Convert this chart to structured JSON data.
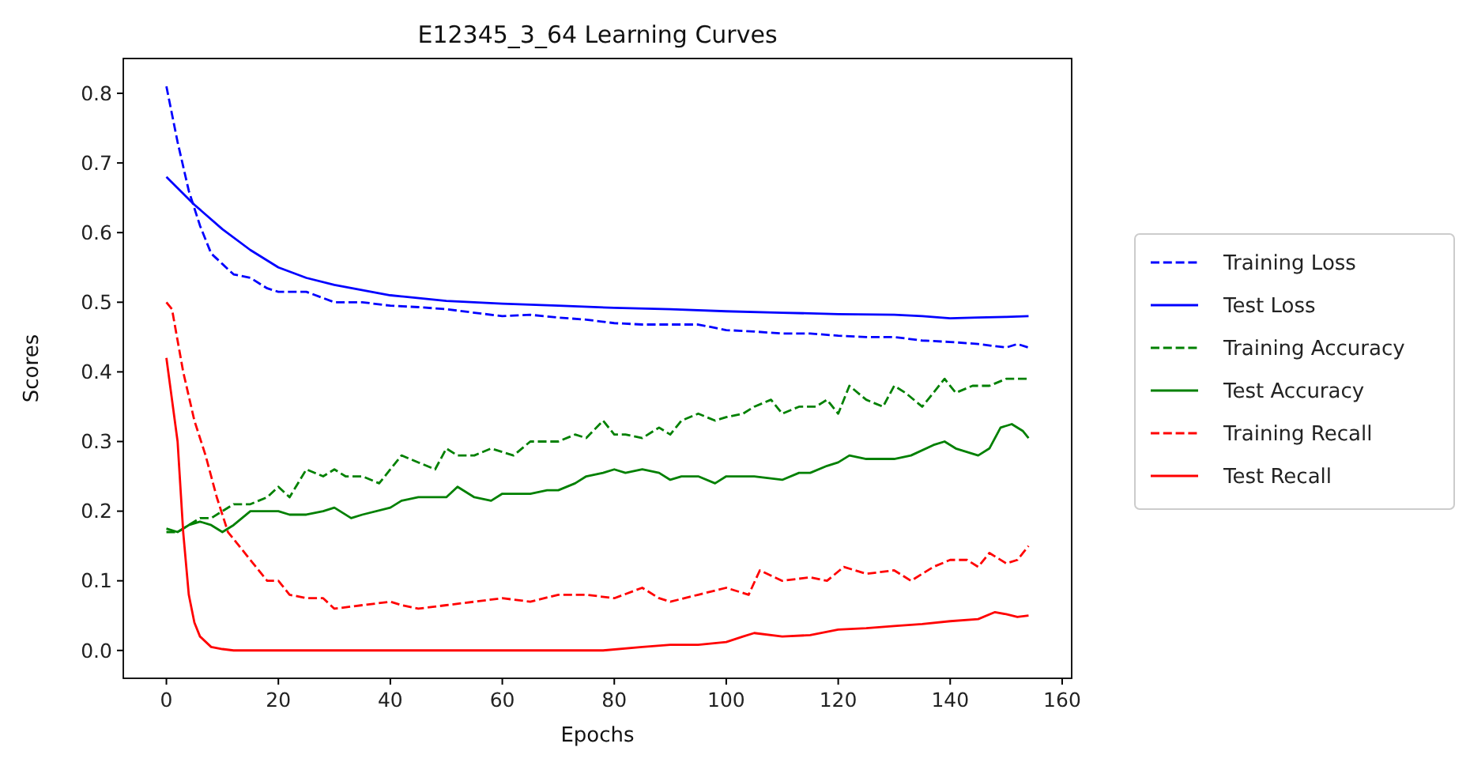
{
  "chart_data": {
    "type": "line",
    "title": "E12345_3_64 Learning Curves",
    "xlabel": "Epochs",
    "ylabel": "Scores",
    "xlim": [
      -7.7,
      161.7
    ],
    "ylim": [
      -0.04,
      0.85
    ],
    "xticks": [
      0,
      20,
      40,
      60,
      80,
      100,
      120,
      140,
      160
    ],
    "yticks": [
      {
        "value": 0,
        "label": "0.0"
      },
      {
        "value": 0.1,
        "label": "0.1"
      },
      {
        "value": 0.2,
        "label": "0.2"
      },
      {
        "value": 0.3,
        "label": "0.3"
      },
      {
        "value": 0.4,
        "label": "0.4"
      },
      {
        "value": 0.5,
        "label": "0.5"
      },
      {
        "value": 0.6,
        "label": "0.6"
      },
      {
        "value": 0.7,
        "label": "0.7"
      },
      {
        "value": 0.8,
        "label": "0.8"
      }
    ],
    "legend": "right",
    "grid": false,
    "series": [
      {
        "name": "Training Loss",
        "color": "#0000ff",
        "line_style": "dashed",
        "x": [
          0,
          2,
          4,
          6,
          8,
          10,
          12,
          15,
          18,
          20,
          25,
          30,
          35,
          40,
          45,
          50,
          55,
          60,
          65,
          70,
          75,
          80,
          85,
          90,
          95,
          100,
          105,
          110,
          115,
          120,
          125,
          130,
          135,
          140,
          145,
          150,
          152,
          154
        ],
        "values": [
          0.81,
          0.73,
          0.66,
          0.61,
          0.57,
          0.555,
          0.54,
          0.535,
          0.52,
          0.515,
          0.515,
          0.5,
          0.5,
          0.495,
          0.493,
          0.49,
          0.485,
          0.48,
          0.482,
          0.478,
          0.475,
          0.47,
          0.468,
          0.468,
          0.468,
          0.46,
          0.458,
          0.455,
          0.455,
          0.452,
          0.45,
          0.45,
          0.445,
          0.443,
          0.44,
          0.435,
          0.44,
          0.435
        ]
      },
      {
        "name": "Test Loss",
        "color": "#0000ff",
        "line_style": "solid",
        "x": [
          0,
          5,
          10,
          15,
          20,
          25,
          30,
          40,
          50,
          60,
          70,
          80,
          90,
          100,
          110,
          120,
          130,
          135,
          140,
          145,
          150,
          154
        ],
        "values": [
          0.68,
          0.64,
          0.605,
          0.575,
          0.55,
          0.535,
          0.525,
          0.51,
          0.502,
          0.498,
          0.495,
          0.492,
          0.49,
          0.487,
          0.485,
          0.483,
          0.482,
          0.48,
          0.477,
          0.478,
          0.479,
          0.48
        ]
      },
      {
        "name": "Training Accuracy",
        "color": "#008000",
        "line_style": "dashed",
        "x": [
          0,
          2,
          4,
          6,
          8,
          10,
          12,
          15,
          18,
          20,
          22,
          25,
          28,
          30,
          32,
          35,
          38,
          40,
          42,
          45,
          48,
          50,
          52,
          55,
          58,
          60,
          62,
          65,
          68,
          70,
          73,
          75,
          78,
          80,
          82,
          85,
          88,
          90,
          92,
          95,
          98,
          100,
          103,
          105,
          108,
          110,
          113,
          116,
          118,
          120,
          122,
          125,
          128,
          130,
          132,
          135,
          137,
          139,
          141,
          144,
          147,
          150,
          152,
          154
        ],
        "values": [
          0.17,
          0.17,
          0.18,
          0.19,
          0.19,
          0.2,
          0.21,
          0.21,
          0.22,
          0.235,
          0.22,
          0.26,
          0.25,
          0.26,
          0.25,
          0.25,
          0.24,
          0.26,
          0.28,
          0.27,
          0.26,
          0.29,
          0.28,
          0.28,
          0.29,
          0.285,
          0.28,
          0.3,
          0.3,
          0.3,
          0.31,
          0.305,
          0.33,
          0.31,
          0.31,
          0.305,
          0.32,
          0.31,
          0.33,
          0.34,
          0.33,
          0.335,
          0.34,
          0.35,
          0.36,
          0.34,
          0.35,
          0.35,
          0.36,
          0.34,
          0.38,
          0.36,
          0.35,
          0.38,
          0.37,
          0.35,
          0.37,
          0.39,
          0.37,
          0.38,
          0.38,
          0.39,
          0.39,
          0.39
        ]
      },
      {
        "name": "Test Accuracy",
        "color": "#008000",
        "line_style": "solid",
        "x": [
          0,
          2,
          4,
          6,
          8,
          10,
          12,
          15,
          20,
          22,
          25,
          28,
          30,
          33,
          35,
          40,
          42,
          45,
          48,
          50,
          52,
          55,
          58,
          60,
          65,
          68,
          70,
          73,
          75,
          78,
          80,
          82,
          85,
          88,
          90,
          92,
          95,
          98,
          100,
          105,
          110,
          113,
          115,
          118,
          120,
          122,
          125,
          130,
          133,
          137,
          139,
          141,
          145,
          147,
          149,
          151,
          153,
          154
        ],
        "values": [
          0.175,
          0.17,
          0.18,
          0.185,
          0.18,
          0.17,
          0.18,
          0.2,
          0.2,
          0.195,
          0.195,
          0.2,
          0.205,
          0.19,
          0.195,
          0.205,
          0.215,
          0.22,
          0.22,
          0.22,
          0.235,
          0.22,
          0.215,
          0.225,
          0.225,
          0.23,
          0.23,
          0.24,
          0.25,
          0.255,
          0.26,
          0.255,
          0.26,
          0.255,
          0.245,
          0.25,
          0.25,
          0.24,
          0.25,
          0.25,
          0.245,
          0.255,
          0.255,
          0.265,
          0.27,
          0.28,
          0.275,
          0.275,
          0.28,
          0.295,
          0.3,
          0.29,
          0.28,
          0.29,
          0.32,
          0.325,
          0.315,
          0.305
        ]
      },
      {
        "name": "Training Recall",
        "color": "#ff0000",
        "line_style": "dashed",
        "x": [
          0,
          1,
          3,
          5,
          7,
          9,
          11,
          13,
          15,
          18,
          20,
          22,
          25,
          28,
          30,
          35,
          40,
          42,
          45,
          50,
          55,
          60,
          65,
          70,
          75,
          80,
          85,
          88,
          90,
          95,
          100,
          104,
          106,
          110,
          115,
          118,
          121,
          125,
          130,
          133,
          137,
          140,
          143,
          145,
          147,
          150,
          152,
          154
        ],
        "values": [
          0.5,
          0.49,
          0.4,
          0.33,
          0.28,
          0.22,
          0.17,
          0.15,
          0.13,
          0.1,
          0.1,
          0.08,
          0.075,
          0.075,
          0.06,
          0.065,
          0.07,
          0.065,
          0.06,
          0.065,
          0.07,
          0.075,
          0.07,
          0.08,
          0.08,
          0.075,
          0.09,
          0.075,
          0.07,
          0.08,
          0.09,
          0.08,
          0.115,
          0.1,
          0.105,
          0.1,
          0.12,
          0.11,
          0.115,
          0.1,
          0.12,
          0.13,
          0.13,
          0.12,
          0.14,
          0.125,
          0.13,
          0.15
        ]
      },
      {
        "name": "Test Recall",
        "color": "#ff0000",
        "line_style": "solid",
        "x": [
          0,
          1,
          2,
          3,
          4,
          5,
          6,
          8,
          10,
          12,
          78,
          85,
          90,
          95,
          100,
          103,
          105,
          110,
          115,
          120,
          125,
          130,
          135,
          140,
          145,
          148,
          150,
          152,
          154
        ],
        "values": [
          0.42,
          0.36,
          0.3,
          0.17,
          0.08,
          0.04,
          0.02,
          0.005,
          0.002,
          0,
          0,
          0.005,
          0.008,
          0.008,
          0.012,
          0.02,
          0.025,
          0.02,
          0.022,
          0.03,
          0.032,
          0.035,
          0.038,
          0.042,
          0.045,
          0.055,
          0.052,
          0.048,
          0.05
        ]
      }
    ]
  }
}
